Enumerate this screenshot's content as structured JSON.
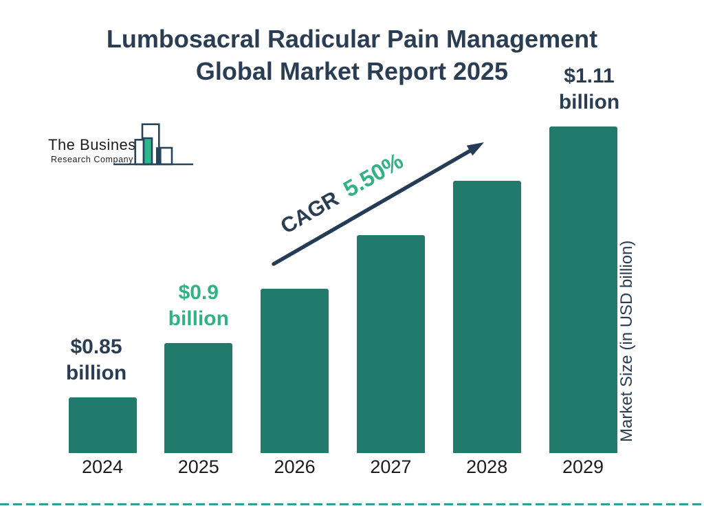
{
  "title": {
    "line1": "Lumbosacral Radicular Pain Management",
    "line2": "Global Market Report 2025"
  },
  "logo": {
    "line1": "The Business",
    "line2": "Research Company"
  },
  "cagr": {
    "label": "CAGR",
    "value": "5.50%"
  },
  "y_axis_label": "Market Size (in USD billion)",
  "colors": {
    "navy_text": "#2b3d52",
    "bar_teal": "#217a6b",
    "green_accent": "#33b186",
    "logo_green": "#2db88c",
    "logo_outline": "#26455c",
    "arrow_navy": "#253c56",
    "dashed_line_teal": "#2f9e99",
    "year_label": "#1b1b1b"
  },
  "chart_data": {
    "type": "bar",
    "title": "Lumbosacral Radicular Pain Management Global Market Report 2025",
    "categories": [
      "2024",
      "2025",
      "2026",
      "2027",
      "2028",
      "2029"
    ],
    "values": [
      0.85,
      0.9,
      0.95,
      1.0,
      1.06,
      1.11
    ],
    "labeled_points": [
      {
        "year": "2024",
        "label": "$0.85 billion"
      },
      {
        "year": "2025",
        "label": "$0.9 billion"
      },
      {
        "year": "2029",
        "label": "$1.11 billion"
      }
    ],
    "cagr_annotation": "CAGR 5.50%",
    "xlabel": "",
    "ylabel": "Market Size (in USD billion)",
    "bar_color": "#217a6b",
    "grid": false,
    "legend": false,
    "annotations": [
      {
        "year": "2024",
        "line1": "$0.85",
        "line2": "billion",
        "color": "#2b3d52"
      },
      {
        "year": "2025",
        "line1": "$0.9",
        "line2": "billion",
        "color": "#33b186"
      },
      {
        "year": "2029",
        "line1": "$1.11",
        "line2": "billion",
        "color": "#2b3d52"
      }
    ]
  }
}
